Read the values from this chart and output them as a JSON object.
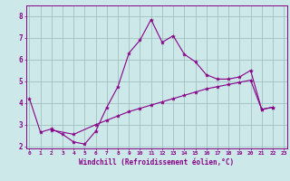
{
  "xlabel": "Windchill (Refroidissement éolien,°C)",
  "bg_color": "#cce8e8",
  "line_color": "#880088",
  "grid_color": "#99bbbb",
  "series1_x": [
    0,
    1,
    2,
    3,
    4,
    5,
    6,
    7,
    8,
    9,
    10,
    11,
    12,
    13,
    14,
    15,
    16,
    17,
    18,
    19,
    20,
    21,
    22
  ],
  "series1_y": [
    4.2,
    2.65,
    2.8,
    2.55,
    2.2,
    2.1,
    2.7,
    3.8,
    4.75,
    6.3,
    6.9,
    7.85,
    6.8,
    7.1,
    6.25,
    5.9,
    5.3,
    5.1,
    5.1,
    5.2,
    5.5,
    3.7,
    3.8
  ],
  "series2_x": [
    2,
    4,
    6,
    7,
    8,
    9,
    10,
    11,
    12,
    13,
    14,
    15,
    16,
    17,
    18,
    19,
    20,
    21,
    22
  ],
  "series2_y": [
    2.75,
    2.55,
    3.0,
    3.2,
    3.4,
    3.6,
    3.75,
    3.9,
    4.05,
    4.2,
    4.35,
    4.5,
    4.65,
    4.75,
    4.85,
    4.95,
    5.05,
    3.7,
    3.8
  ],
  "ylim": [
    1.9,
    8.5
  ],
  "xlim": [
    -0.3,
    23.3
  ],
  "yticks": [
    2,
    3,
    4,
    5,
    6,
    7,
    8
  ],
  "xticks": [
    0,
    1,
    2,
    3,
    4,
    5,
    6,
    7,
    8,
    9,
    10,
    11,
    12,
    13,
    14,
    15,
    16,
    17,
    18,
    19,
    20,
    21,
    22,
    23
  ]
}
